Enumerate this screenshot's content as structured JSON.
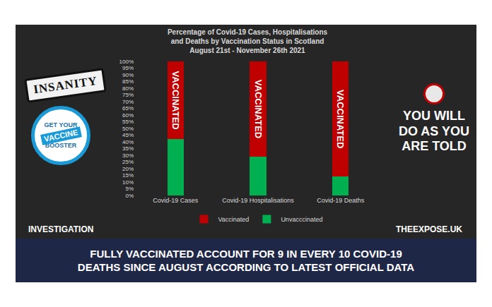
{
  "chart_data": {
    "type": "bar",
    "title": "Percentage of Covid-19 Cases, Hospitalisations and Deaths by Vaccination Status in Scotland August 21st - November 26th 2021",
    "categories": [
      "Covid-19 Cases",
      "Covid-19 Hospitalisations",
      "Covid-19 Deaths"
    ],
    "series": [
      {
        "name": "Unvacccinated",
        "color": "#00b050",
        "values": [
          42,
          29,
          14
        ]
      },
      {
        "name": "Vaccinated",
        "color": "#c00000",
        "values": [
          58,
          71,
          86
        ],
        "label": "VACCINATED"
      }
    ],
    "stacked": true,
    "ylim": [
      0,
      100
    ],
    "yticks": [
      {
        "value": 0,
        "label": "0%"
      },
      {
        "value": 5,
        "label": "5%"
      },
      {
        "value": 10,
        "label": "10%"
      },
      {
        "value": 15,
        "label": "15%"
      },
      {
        "value": 20,
        "label": "20%"
      },
      {
        "value": 25,
        "label": "25%"
      },
      {
        "value": 30,
        "label": "30%"
      },
      {
        "value": 35,
        "label": "35%"
      },
      {
        "value": 40,
        "label": "40%"
      },
      {
        "value": 45,
        "label": "45%"
      },
      {
        "value": 50,
        "label": "50%"
      },
      {
        "value": 55,
        "label": "55%"
      },
      {
        "value": 60,
        "label": "60%"
      },
      {
        "value": 65,
        "label": "65%"
      },
      {
        "value": 70,
        "label": "70%"
      },
      {
        "value": 75,
        "label": "75%"
      },
      {
        "value": 80,
        "label": "80%"
      },
      {
        "value": 85,
        "label": "85%"
      },
      {
        "value": 90,
        "label": "90%"
      },
      {
        "value": 95,
        "label": "95%"
      },
      {
        "value": 100,
        "label": "100%"
      }
    ],
    "grid": false,
    "legend": "bottom"
  },
  "stamp": "INSANITY",
  "badge": [
    "GET YOUR",
    "VACCINE",
    "BOOSTER"
  ],
  "slogan": [
    "YOU WILL",
    "DO AS YOU",
    "ARE TOLD"
  ],
  "left_tag": "INVESTIGATION",
  "right_tag": "THEEXPOSE.UK",
  "headline": [
    "FULLY VACCINATED ACCOUNT FOR 9 IN EVERY 10 COVID-19",
    "DEATHS SINCE AUGUST ACCORDING TO LATEST OFFICIAL DATA"
  ]
}
